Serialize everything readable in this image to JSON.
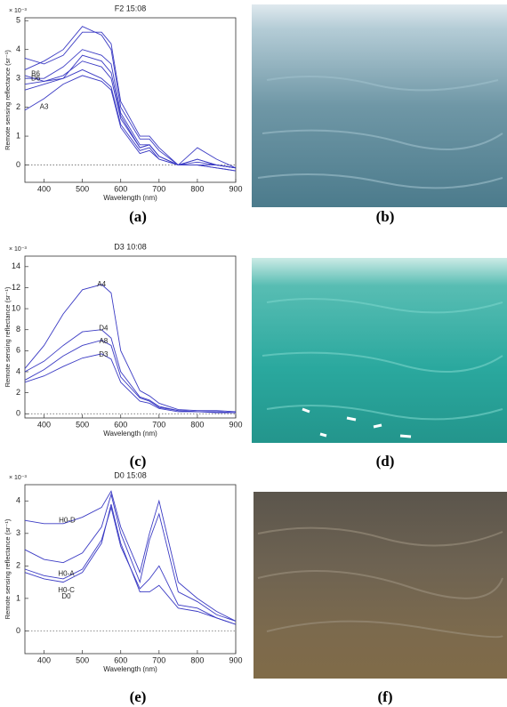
{
  "chart_data": [
    {
      "type": "line",
      "title": "F2 15:08",
      "panel_label": "(a)",
      "y_scale_label": "× 10⁻³",
      "y_label": "Remote sensing reflectance (sr⁻¹)",
      "x_label": "Wavelength (nm)",
      "xlim": [
        350,
        900
      ],
      "xticks": [
        400,
        500,
        600,
        700,
        800,
        900
      ],
      "ylim": [
        -0.6,
        5.1
      ],
      "yticks": [
        0,
        1,
        2,
        3,
        4,
        5
      ],
      "zero_line": true,
      "x": [
        350,
        400,
        450,
        500,
        550,
        575,
        600,
        650,
        675,
        700,
        750,
        800,
        850,
        900
      ],
      "series": [
        {
          "color": "#3b3bc4",
          "values": [
            3.3,
            3.6,
            4.0,
            4.8,
            4.5,
            4.0,
            2.0,
            0.9,
            0.9,
            0.5,
            0.0,
            0.2,
            0.0,
            -0.1
          ]
        },
        {
          "color": "#3b3bc4",
          "values": [
            3.7,
            3.5,
            3.8,
            4.6,
            4.6,
            4.2,
            2.2,
            1.0,
            1.0,
            0.6,
            0.0,
            0.0,
            0.0,
            -0.1
          ]
        },
        {
          "color": "#3b3bc4",
          "values": [
            3.0,
            3.0,
            3.4,
            4.0,
            3.8,
            3.5,
            1.8,
            0.7,
            0.7,
            0.3,
            0.0,
            0.0,
            -0.1,
            -0.2
          ]
        },
        {
          "color": "#3b3bc4",
          "values": [
            2.8,
            2.9,
            3.1,
            3.6,
            3.4,
            3.0,
            1.6,
            0.6,
            0.7,
            0.3,
            0.0,
            0.1,
            0.0,
            -0.1
          ]
        },
        {
          "color": "#3b3bc4",
          "values": [
            3.1,
            2.9,
            3.0,
            3.3,
            3.0,
            2.7,
            1.4,
            0.5,
            0.6,
            0.2,
            0.0,
            0.2,
            0.0,
            -0.1
          ]
        },
        {
          "color": "#3b3bc4",
          "values": [
            2.6,
            2.8,
            3.0,
            3.8,
            3.6,
            3.2,
            1.7,
            0.6,
            0.7,
            0.3,
            0.0,
            0.0,
            -0.1,
            -0.2
          ]
        },
        {
          "color": "#3b3bc4",
          "values": [
            1.9,
            2.3,
            2.8,
            3.1,
            2.9,
            2.6,
            1.3,
            0.4,
            0.5,
            0.2,
            0.0,
            0.6,
            0.2,
            -0.1
          ]
        }
      ],
      "annotations": [
        {
          "text": "B6",
          "x": 378,
          "y": 3.15
        },
        {
          "text": "D6",
          "x": 378,
          "y": 3.0
        },
        {
          "text": "A3",
          "x": 400,
          "y": 2.0
        }
      ]
    },
    {
      "type": "line",
      "title": "D3 10:08",
      "panel_label": "(c)",
      "y_scale_label": "× 10⁻³",
      "y_label": "Remote sensing reflectance (sr⁻¹)",
      "x_label": "Wavelength (nm)",
      "xlim": [
        350,
        900
      ],
      "xticks": [
        400,
        500,
        600,
        700,
        800,
        900
      ],
      "ylim": [
        -0.4,
        15
      ],
      "yticks": [
        0,
        2,
        4,
        6,
        8,
        10,
        12,
        14
      ],
      "zero_line": true,
      "x": [
        350,
        400,
        450,
        500,
        550,
        575,
        600,
        650,
        675,
        700,
        750,
        800,
        850,
        900
      ],
      "series": [
        {
          "color": "#3b3bc4",
          "values": [
            4.3,
            6.5,
            9.5,
            11.8,
            12.3,
            11.5,
            6.0,
            2.2,
            1.7,
            1.0,
            0.4,
            0.3,
            0.3,
            0.2
          ]
        },
        {
          "color": "#3b3bc4",
          "values": [
            4.0,
            5.0,
            6.5,
            7.8,
            8.0,
            7.2,
            4.0,
            1.6,
            1.3,
            0.7,
            0.3,
            0.2,
            0.2,
            0.1
          ]
        },
        {
          "color": "#3b3bc4",
          "values": [
            3.2,
            4.2,
            5.5,
            6.5,
            7.0,
            6.5,
            3.5,
            1.5,
            1.2,
            0.6,
            0.3,
            0.2,
            0.2,
            0.1
          ]
        },
        {
          "color": "#3b3bc4",
          "values": [
            3.0,
            3.6,
            4.5,
            5.3,
            5.7,
            5.2,
            3.0,
            1.2,
            1.0,
            0.5,
            0.2,
            0.2,
            0.1,
            0.1
          ]
        }
      ],
      "annotations": [
        {
          "text": "A4",
          "x": 550,
          "y": 12.3
        },
        {
          "text": "D4",
          "x": 555,
          "y": 8.1
        },
        {
          "text": "A8",
          "x": 555,
          "y": 6.9
        },
        {
          "text": "D3",
          "x": 555,
          "y": 5.6
        }
      ]
    },
    {
      "type": "line",
      "title": "D0 15:08",
      "panel_label": "(e)",
      "y_scale_label": "× 10⁻³",
      "y_label": "Remote sensing reflectance (sr⁻¹)",
      "x_label": "Wavelength (nm)",
      "xlim": [
        350,
        900
      ],
      "xticks": [
        400,
        500,
        600,
        700,
        800,
        900
      ],
      "ylim": [
        -0.7,
        4.5
      ],
      "yticks": [
        0,
        1,
        2,
        3,
        4
      ],
      "zero_line": true,
      "x": [
        350,
        400,
        450,
        500,
        550,
        575,
        600,
        650,
        675,
        700,
        750,
        800,
        850,
        900
      ],
      "series": [
        {
          "color": "#3b3bc4",
          "values": [
            3.4,
            3.3,
            3.3,
            3.5,
            3.8,
            4.3,
            3.2,
            1.8,
            3.0,
            4.0,
            1.5,
            1.0,
            0.6,
            0.3
          ]
        },
        {
          "color": "#3b3bc4",
          "values": [
            2.5,
            2.2,
            2.1,
            2.4,
            3.2,
            4.2,
            3.0,
            1.5,
            2.8,
            3.6,
            1.2,
            0.9,
            0.5,
            0.3
          ]
        },
        {
          "color": "#3b3bc4",
          "values": [
            1.9,
            1.7,
            1.6,
            1.9,
            2.8,
            3.8,
            2.6,
            1.3,
            1.6,
            2.0,
            0.8,
            0.7,
            0.4,
            0.2
          ]
        },
        {
          "color": "#3b3bc4",
          "values": [
            1.8,
            1.6,
            1.5,
            1.8,
            2.7,
            3.9,
            2.7,
            1.2,
            1.2,
            1.4,
            0.7,
            0.6,
            0.4,
            0.2
          ]
        }
      ],
      "annotations": [
        {
          "text": "H0-D",
          "x": 460,
          "y": 3.4
        },
        {
          "text": "H0-A",
          "x": 458,
          "y": 1.75
        },
        {
          "text": "H0-C",
          "x": 458,
          "y": 1.25
        },
        {
          "text": "D0",
          "x": 458,
          "y": 1.05
        }
      ]
    }
  ],
  "photos": [
    {
      "label": "(b)"
    },
    {
      "label": "(d)"
    },
    {
      "label": "(f)"
    }
  ]
}
